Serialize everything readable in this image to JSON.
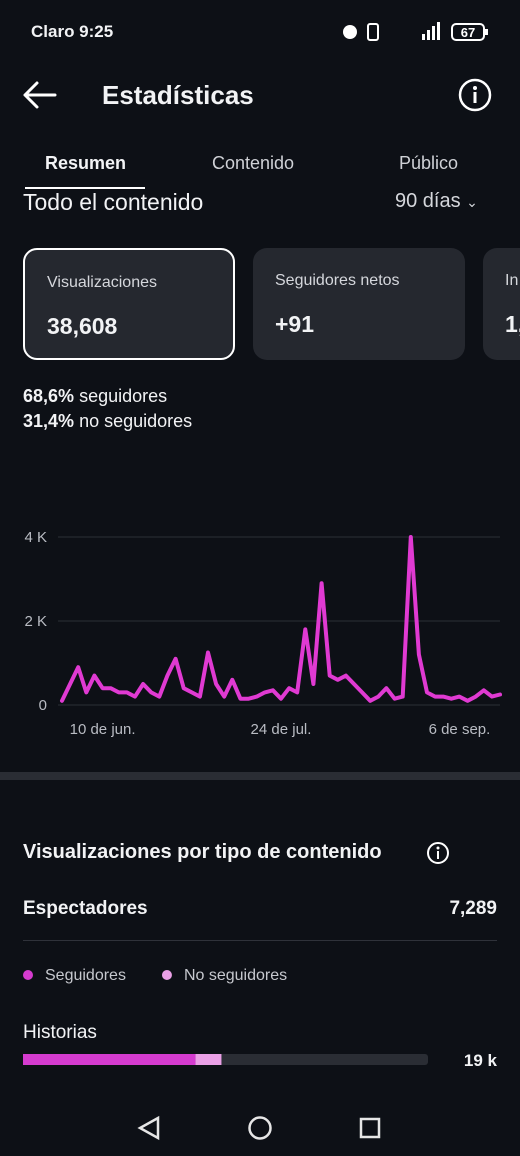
{
  "status_bar": {
    "carrier_time": "Claro 9:25",
    "battery": "67"
  },
  "header": {
    "title": "Estadísticas"
  },
  "tabs": [
    "Resumen",
    "Contenido",
    "Público"
  ],
  "section": {
    "title": "Todo el contenido",
    "period": "90 días"
  },
  "cards": [
    {
      "label": "Visualizaciones",
      "value": "38,608"
    },
    {
      "label": "Seguidores netos",
      "value": "+91"
    },
    {
      "label": "In",
      "value": "1,"
    }
  ],
  "breakdown": [
    {
      "value": "68,6%",
      "label": "seguidores"
    },
    {
      "value": "31,4%",
      "label": "no seguidores"
    }
  ],
  "chart_data": {
    "type": "line",
    "color": "#e03ad2",
    "values": [
      100,
      500,
      900,
      300,
      700,
      400,
      400,
      300,
      300,
      200,
      500,
      300,
      200,
      700,
      1100,
      400,
      300,
      200,
      1250,
      500,
      200,
      600,
      150,
      150,
      200,
      300,
      350,
      150,
      400,
      300,
      1800,
      500,
      2900,
      700,
      600,
      700,
      500,
      300,
      100,
      200,
      400,
      150,
      200,
      4000,
      1200,
      300,
      200,
      200,
      150,
      200,
      100,
      200,
      350,
      200,
      250
    ],
    "xlim": [
      0,
      54
    ],
    "xticks": [
      {
        "value": 5,
        "label": "10 de jun."
      },
      {
        "value": 27,
        "label": "24 de jul."
      },
      {
        "value": 49,
        "label": "6 de sep."
      }
    ],
    "ylim": [
      0,
      4000
    ],
    "yticks": [
      0,
      {
        "value": 2000,
        "label": "2 K"
      },
      {
        "value": 4000,
        "label": "4 K"
      }
    ],
    "grid": true
  },
  "content_types": {
    "title": "Visualizaciones por tipo de contenido",
    "viewers_label": "Espectadores",
    "viewers_value": "7,289",
    "legend": [
      {
        "name": "Seguidores",
        "color": "#d53bcf"
      },
      {
        "name": "No seguidores",
        "color": "#eaa0e6"
      }
    ],
    "xlim": [
      0,
      100
    ],
    "rows": [
      {
        "label": "Historias",
        "values": [
          42.6,
          6.4
        ],
        "total": "19 k"
      }
    ]
  }
}
